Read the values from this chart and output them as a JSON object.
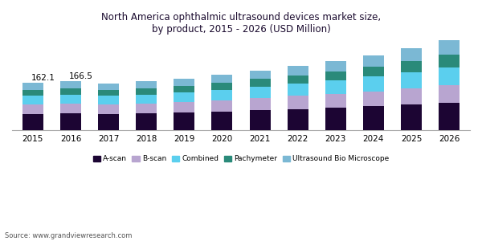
{
  "title": "North America ophthalmic ultrasound devices market size,\nby product, 2015 - 2026 (USD Million)",
  "years": [
    2015,
    2016,
    2017,
    2018,
    2019,
    2020,
    2021,
    2022,
    2023,
    2024,
    2025,
    2026
  ],
  "series": {
    "A-scan": [
      55,
      58,
      56,
      58,
      62,
      65,
      69,
      73,
      77,
      82,
      87,
      93
    ],
    "B-scan": [
      32,
      33,
      32,
      33,
      35,
      38,
      41,
      44,
      47,
      51,
      55,
      60
    ],
    "Combined": [
      30,
      30,
      29,
      30,
      32,
      35,
      38,
      42,
      45,
      49,
      54,
      60
    ],
    "Pachymeter": [
      20,
      21,
      20,
      21,
      22,
      24,
      26,
      28,
      31,
      34,
      38,
      43
    ],
    "Ultrasound Bio Microscope": [
      25,
      25,
      23,
      24,
      25,
      27,
      29,
      32,
      35,
      39,
      44,
      50
    ]
  },
  "totals_2015": "162.1",
  "totals_2016": "166.5",
  "colors": {
    "A-scan": "#1c0533",
    "B-scan": "#b8a5d0",
    "Combined": "#5bcfee",
    "Pachymeter": "#2a8a7a",
    "Ultrasound Bio Microscope": "#7bb8d4"
  },
  "source": "Source: www.grandviewresearch.com",
  "background_color": "#ffffff",
  "ylim": [
    0,
    310
  ],
  "bar_width": 0.55
}
